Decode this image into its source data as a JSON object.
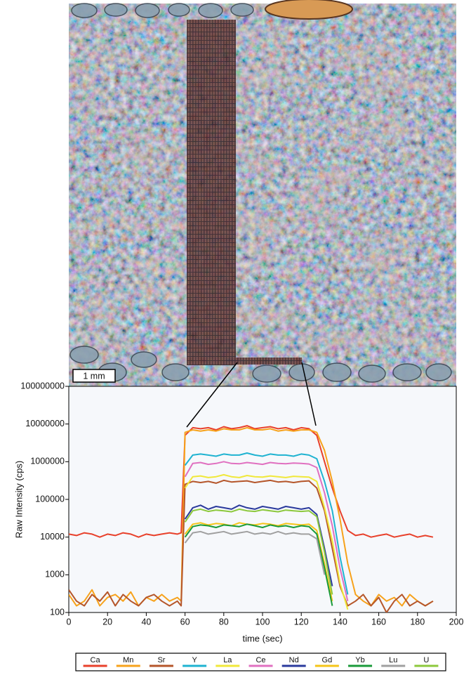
{
  "photo": {
    "scale_bar": "1 mm"
  },
  "chart_data": {
    "type": "line",
    "y_label": "Raw Intensity (cps)",
    "x_label": "time (sec)",
    "log_y": true,
    "xlim": [
      0,
      200
    ],
    "xticks": [
      0,
      20,
      40,
      60,
      80,
      100,
      120,
      140,
      160,
      180,
      200
    ],
    "ylim": [
      100,
      100000000
    ],
    "yticks": [
      100,
      1000,
      10000,
      100000,
      1000000,
      10000000,
      100000000
    ],
    "x": [
      0,
      4,
      8,
      12,
      16,
      20,
      24,
      28,
      32,
      36,
      40,
      44,
      48,
      52,
      56,
      58,
      60,
      64,
      68,
      72,
      76,
      80,
      84,
      88,
      92,
      96,
      100,
      104,
      108,
      112,
      116,
      120,
      124,
      128,
      132,
      136,
      140,
      144,
      148,
      152,
      156,
      160,
      164,
      168,
      172,
      176,
      180,
      184,
      188
    ],
    "series": [
      {
        "name": "Ca",
        "color": "#e8412b",
        "values": [
          12000,
          11000,
          13000,
          12000,
          10000,
          12000,
          11000,
          13000,
          12000,
          10000,
          12000,
          11000,
          12000,
          13000,
          12000,
          13000,
          5000000,
          8000000,
          7500000,
          8000000,
          7000000,
          8500000,
          7500000,
          8000000,
          9000000,
          7500000,
          8000000,
          8500000,
          7500000,
          8000000,
          7000000,
          8000000,
          7500000,
          5000000,
          1000000,
          200000,
          50000,
          15000,
          11000,
          12000,
          10000,
          11000,
          12000,
          10000,
          11000,
          12000,
          10000,
          11000,
          10000
        ]
      },
      {
        "name": "Mn",
        "color": "#f7a21b",
        "values": [
          300,
          150,
          200,
          400,
          150,
          250,
          300,
          200,
          350,
          150,
          250,
          200,
          300,
          200,
          250,
          200,
          6000000,
          7000000,
          6500000,
          7000000,
          6500000,
          7500000,
          7000000,
          7000000,
          8000000,
          7000000,
          7000000,
          7500000,
          6500000,
          7000000,
          6500000,
          7000000,
          7000000,
          6000000,
          2000000,
          300000,
          30000,
          2000,
          300,
          200,
          150,
          300,
          200,
          250,
          150,
          300,
          200,
          150,
          200
        ]
      },
      {
        "name": "Sr",
        "color": "#b5562a",
        "values": [
          400,
          200,
          150,
          300,
          200,
          350,
          150,
          300,
          200,
          150,
          250,
          300,
          200,
          150,
          200,
          150,
          250000,
          300000,
          280000,
          300000,
          270000,
          320000,
          290000,
          300000,
          310000,
          280000,
          300000,
          320000,
          290000,
          300000,
          280000,
          300000,
          310000,
          200000,
          50000,
          5000,
          500,
          150,
          200,
          300,
          150,
          250,
          100,
          200,
          300,
          150,
          200,
          150,
          200
        ]
      },
      {
        "name": "Y",
        "color": "#1fb3d1",
        "values": [
          null,
          null,
          null,
          null,
          null,
          null,
          null,
          null,
          null,
          null,
          null,
          null,
          null,
          null,
          null,
          null,
          800000,
          1500000,
          1600000,
          1500000,
          1400000,
          1600000,
          1500000,
          1500000,
          1700000,
          1500000,
          1400000,
          1600000,
          1500000,
          1500000,
          1400000,
          1600000,
          1500000,
          1200000,
          300000,
          50000,
          3000,
          300,
          null,
          null,
          null,
          null,
          null,
          null,
          null,
          null,
          null,
          null,
          null
        ]
      },
      {
        "name": "La",
        "color": "#f0e83a",
        "values": [
          null,
          null,
          null,
          null,
          null,
          null,
          null,
          null,
          null,
          null,
          null,
          null,
          null,
          null,
          null,
          null,
          200000,
          400000,
          420000,
          380000,
          400000,
          450000,
          400000,
          380000,
          430000,
          400000,
          390000,
          420000,
          400000,
          380000,
          410000,
          400000,
          390000,
          300000,
          60000,
          8000,
          600,
          120,
          null,
          null,
          null,
          null,
          null,
          null,
          null,
          null,
          null,
          null,
          null
        ]
      },
      {
        "name": "Ce",
        "color": "#e070c0",
        "values": [
          null,
          null,
          null,
          null,
          null,
          null,
          null,
          null,
          null,
          null,
          null,
          null,
          null,
          null,
          null,
          null,
          400000,
          900000,
          950000,
          850000,
          900000,
          1000000,
          900000,
          880000,
          950000,
          900000,
          850000,
          950000,
          900000,
          880000,
          920000,
          900000,
          870000,
          700000,
          150000,
          20000,
          1500,
          200,
          null,
          null,
          null,
          null,
          null,
          null,
          null,
          null,
          null,
          null,
          null
        ]
      },
      {
        "name": "Nd",
        "color": "#2a3a9c",
        "values": [
          null,
          null,
          null,
          null,
          null,
          null,
          null,
          null,
          null,
          null,
          null,
          null,
          null,
          null,
          null,
          null,
          30000,
          60000,
          70000,
          55000,
          65000,
          60000,
          55000,
          70000,
          60000,
          55000,
          65000,
          60000,
          55000,
          65000,
          60000,
          55000,
          60000,
          40000,
          5000,
          500,
          null,
          null,
          null,
          null,
          null,
          null,
          null,
          null,
          null,
          null,
          null,
          null,
          null
        ]
      },
      {
        "name": "Gd",
        "color": "#f5c518",
        "values": [
          null,
          null,
          null,
          null,
          null,
          null,
          null,
          null,
          null,
          null,
          null,
          null,
          null,
          null,
          null,
          null,
          12000,
          22000,
          24000,
          21000,
          23000,
          22000,
          20000,
          24000,
          22000,
          21000,
          23000,
          22000,
          20000,
          23000,
          22000,
          21000,
          22000,
          15000,
          2000,
          200,
          null,
          null,
          null,
          null,
          null,
          null,
          null,
          null,
          null,
          null,
          null,
          null,
          null
        ]
      },
      {
        "name": "Yb",
        "color": "#1a9a3a",
        "values": [
          null,
          null,
          null,
          null,
          null,
          null,
          null,
          null,
          null,
          null,
          null,
          null,
          null,
          null,
          null,
          null,
          10000,
          19000,
          21000,
          20000,
          18000,
          21000,
          20000,
          19000,
          22000,
          20000,
          18000,
          21000,
          19000,
          20000,
          18000,
          20000,
          19000,
          12000,
          1500,
          150,
          null,
          null,
          null,
          null,
          null,
          null,
          null,
          null,
          null,
          null,
          null,
          null,
          null
        ]
      },
      {
        "name": "Lu",
        "color": "#a0a0a0",
        "values": [
          null,
          null,
          null,
          null,
          null,
          null,
          null,
          null,
          null,
          null,
          null,
          null,
          null,
          null,
          null,
          null,
          7000,
          13000,
          14000,
          12000,
          13000,
          14000,
          12000,
          13000,
          14000,
          12000,
          13000,
          12000,
          14000,
          12000,
          13000,
          12000,
          12000,
          9000,
          1000,
          null,
          null,
          null,
          null,
          null,
          null,
          null,
          null,
          null,
          null,
          null,
          null,
          null,
          null
        ]
      },
      {
        "name": "U",
        "color": "#8cc83c",
        "values": [
          null,
          null,
          null,
          null,
          null,
          null,
          null,
          null,
          null,
          null,
          null,
          null,
          null,
          null,
          null,
          null,
          25000,
          50000,
          55000,
          48000,
          52000,
          50000,
          47000,
          55000,
          50000,
          48000,
          53000,
          50000,
          47000,
          52000,
          50000,
          48000,
          50000,
          35000,
          4000,
          300,
          null,
          null,
          null,
          null,
          null,
          null,
          null,
          null,
          null,
          null,
          null,
          null,
          null
        ]
      }
    ]
  }
}
